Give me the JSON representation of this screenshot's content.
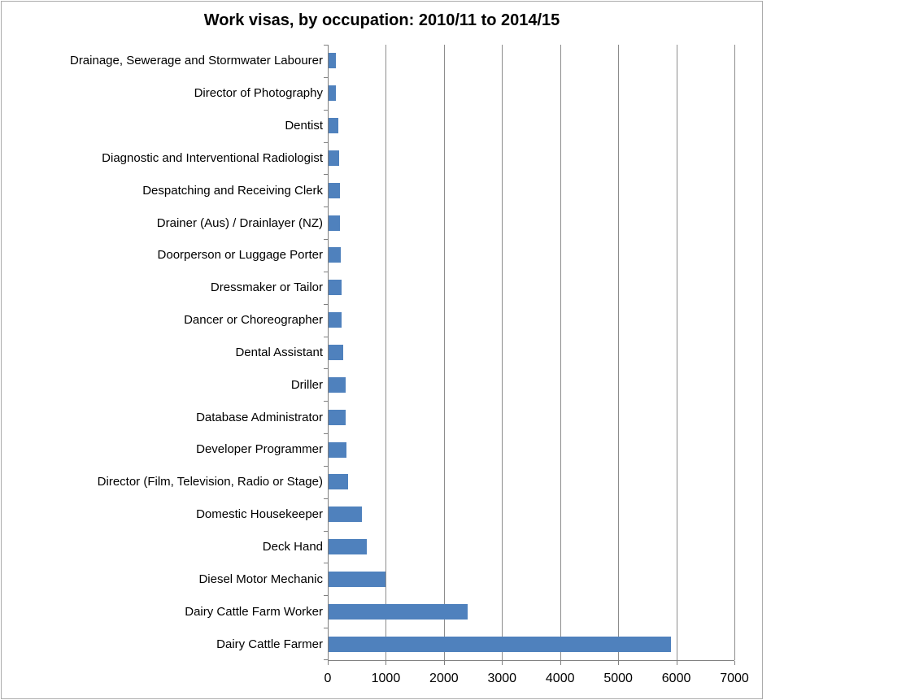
{
  "chart_data": {
    "type": "bar",
    "orientation": "horizontal",
    "title": "Work visas, by occupation: 2010/11 to 2014/15",
    "xlabel": "",
    "ylabel": "",
    "categories": [
      "Drainage, Sewerage and Stormwater Labourer",
      "Director of Photography",
      "Dentist",
      "Diagnostic and Interventional Radiologist",
      "Despatching and Receiving Clerk",
      "Drainer (Aus) / Drainlayer (NZ)",
      "Doorperson or Luggage Porter",
      "Dressmaker or Tailor",
      "Dancer or Choreographer",
      "Dental Assistant",
      "Driller",
      "Database Administrator",
      "Developer Programmer",
      "Director (Film, Television, Radio or Stage)",
      "Domestic Housekeeper",
      "Deck Hand",
      "Diesel Motor Mechanic",
      "Dairy Cattle Farm Worker",
      "Dairy Cattle Farmer"
    ],
    "values": [
      125,
      130,
      170,
      185,
      190,
      200,
      215,
      220,
      225,
      255,
      290,
      295,
      310,
      335,
      570,
      660,
      975,
      2400,
      5890
    ],
    "xlim": [
      0,
      7000
    ],
    "x_ticks": [
      0,
      1000,
      2000,
      3000,
      4000,
      5000,
      6000,
      7000
    ],
    "x_tick_labels": [
      "0",
      "1000",
      "2000",
      "3000",
      "4000",
      "5000",
      "6000",
      "7000"
    ],
    "grid": true,
    "legend": "none",
    "colors": {
      "bar": "#4F81BD",
      "gridline": "#8c8c8c",
      "axis": "#808080",
      "frame_border": "#ababab",
      "title_text": "#000000",
      "label_text": "#000000"
    }
  }
}
